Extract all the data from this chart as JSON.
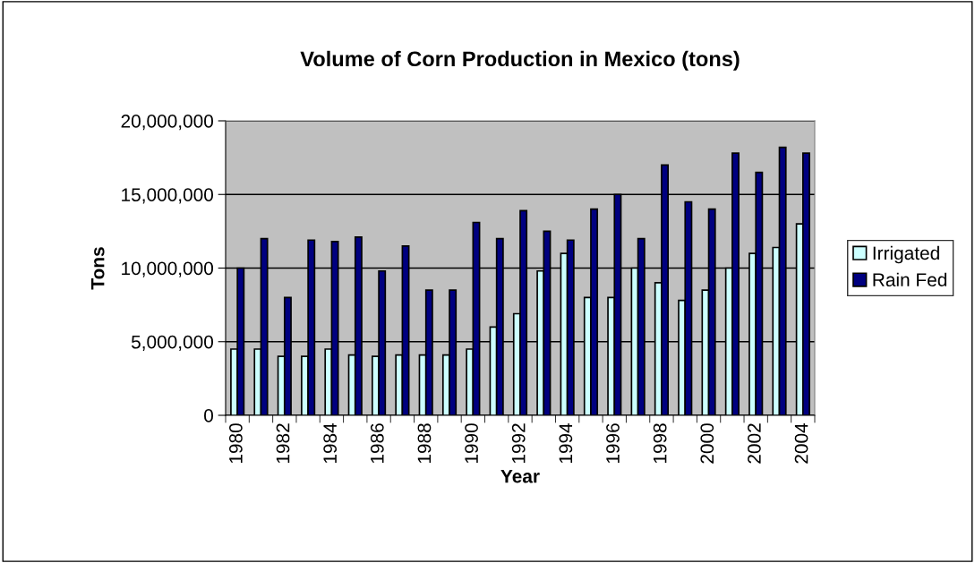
{
  "chart_data": {
    "type": "bar",
    "title": "Volume of Corn Production in Mexico (tons)",
    "xlabel": "Year",
    "ylabel": "Tons",
    "categories": [
      "1980",
      null,
      "1982",
      null,
      "1984",
      null,
      "1986",
      null,
      "1988",
      null,
      "1990",
      null,
      "1992",
      null,
      "1994",
      null,
      "1996",
      null,
      "1998",
      null,
      "2000",
      null,
      "2002",
      null,
      "2004"
    ],
    "series": [
      {
        "name": "Irrigated",
        "color": "#ccffff",
        "values": [
          4500000,
          4500000,
          4000000,
          4000000,
          4500000,
          4100000,
          4000000,
          4100000,
          4100000,
          4100000,
          4500000,
          6000000,
          6900000,
          9800000,
          11000000,
          8000000,
          8000000,
          10000000,
          9000000,
          7800000,
          8500000,
          10000000,
          11000000,
          11400000,
          13000000
        ]
      },
      {
        "name": "Rain Fed",
        "color": "#000080",
        "values": [
          10000000,
          12000000,
          8000000,
          11900000,
          11800000,
          12100000,
          9800000,
          11500000,
          8500000,
          8500000,
          13100000,
          12000000,
          13900000,
          12500000,
          11900000,
          14000000,
          15000000,
          12000000,
          17000000,
          14500000,
          14000000,
          17800000,
          16500000,
          18200000,
          17800000
        ]
      }
    ],
    "ylim": [
      0,
      20000000
    ],
    "yticks": [
      {
        "value": 0,
        "label": "0"
      },
      {
        "value": 5000000,
        "label": "5,000,000"
      },
      {
        "value": 10000000,
        "label": "10,000,000"
      },
      {
        "value": 15000000,
        "label": "15,000,000"
      },
      {
        "value": 20000000,
        "label": "20,000,000"
      }
    ],
    "grid": "y",
    "legend": "right"
  }
}
